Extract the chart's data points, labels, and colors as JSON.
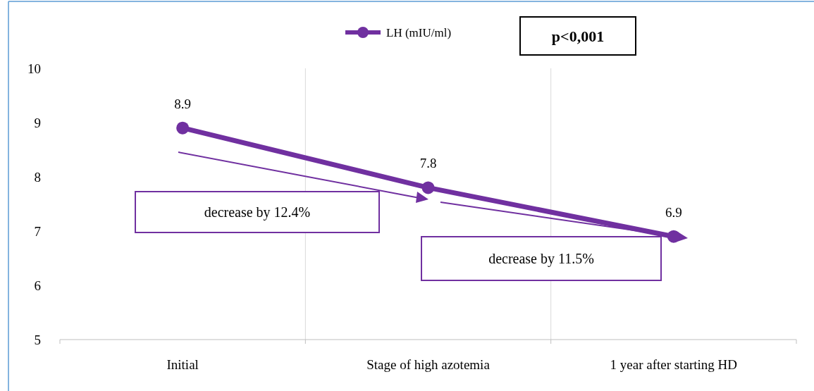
{
  "chart_data": {
    "type": "line",
    "categories": [
      "Initial",
      "Stage of high azotemia",
      "1 year after starting HD"
    ],
    "series": [
      {
        "name": "LH (mIU/ml)",
        "color": "#7030a0",
        "values": [
          8.9,
          7.8,
          6.9
        ]
      }
    ],
    "ylim": [
      5,
      10
    ],
    "yticks": [
      5,
      6,
      7,
      8,
      9,
      10
    ],
    "grid": "x",
    "legend": "top",
    "marker": "circle",
    "data_labels": true,
    "annotations": [
      "p<0,001",
      "decrease by 12.4%",
      "decrease by 11.5%"
    ]
  }
}
